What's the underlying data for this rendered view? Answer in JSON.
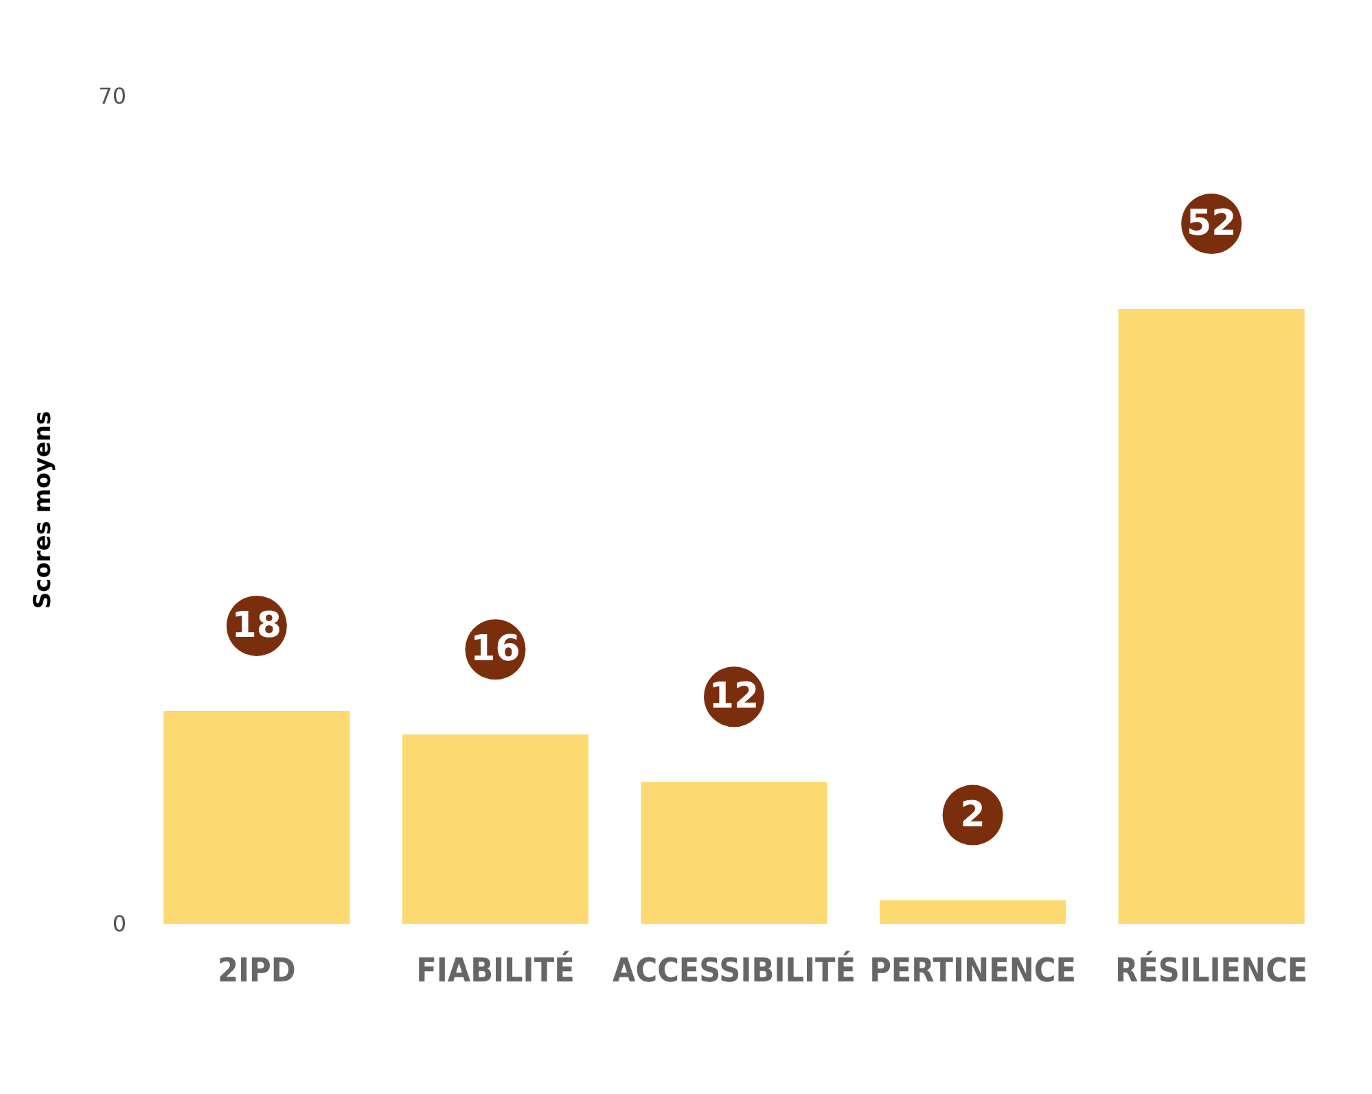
{
  "chart_data": {
    "type": "bar",
    "ylabel": "Scores moyens",
    "categories": [
      "2IPD",
      "FIABILITÉ",
      "ACCESSIBILITÉ",
      "PERTINENCE",
      "RÉSILIENCE"
    ],
    "values": [
      18,
      16,
      12,
      2,
      52
    ],
    "color": "#fcd971",
    "ylim": [
      0,
      70
    ],
    "yticks": [
      0,
      70
    ],
    "data_labels": true
  }
}
